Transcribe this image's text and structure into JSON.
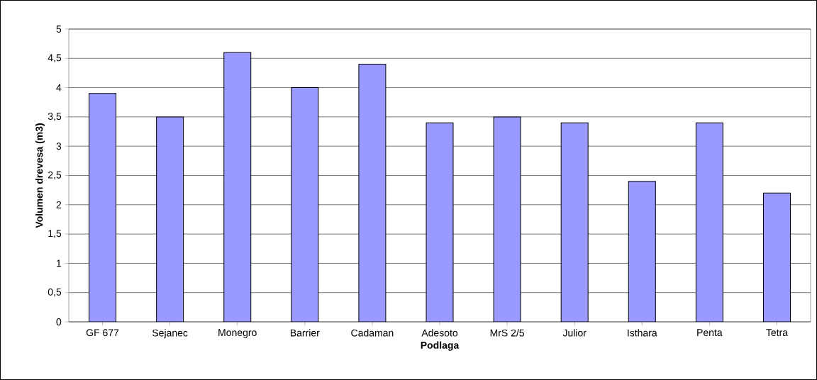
{
  "chart_data": {
    "type": "bar",
    "xlabel": "Podlaga",
    "ylabel": "Volumen drevesa (m3)",
    "categories": [
      "GF 677",
      "Sejanec",
      "Monegro",
      "Barrier",
      "Cadaman",
      "Adesoto",
      "MrS 2/5",
      "Julior",
      "Isthara",
      "Penta",
      "Tetra"
    ],
    "values": [
      3.9,
      3.5,
      4.6,
      4.0,
      4.4,
      3.4,
      3.5,
      3.4,
      2.4,
      3.4,
      2.2
    ],
    "color": "#9999ff",
    "ylim": [
      0,
      5
    ],
    "yticks": [
      0,
      {
        "value": 0.5,
        "label": "0,5"
      },
      1,
      {
        "value": 1.5,
        "label": "1,5"
      },
      2,
      {
        "value": 2.5,
        "label": "2,5"
      },
      3,
      {
        "value": 3.5,
        "label": "3,5"
      },
      4,
      {
        "value": 4.5,
        "label": "4,5"
      },
      5
    ],
    "grid": "y"
  }
}
